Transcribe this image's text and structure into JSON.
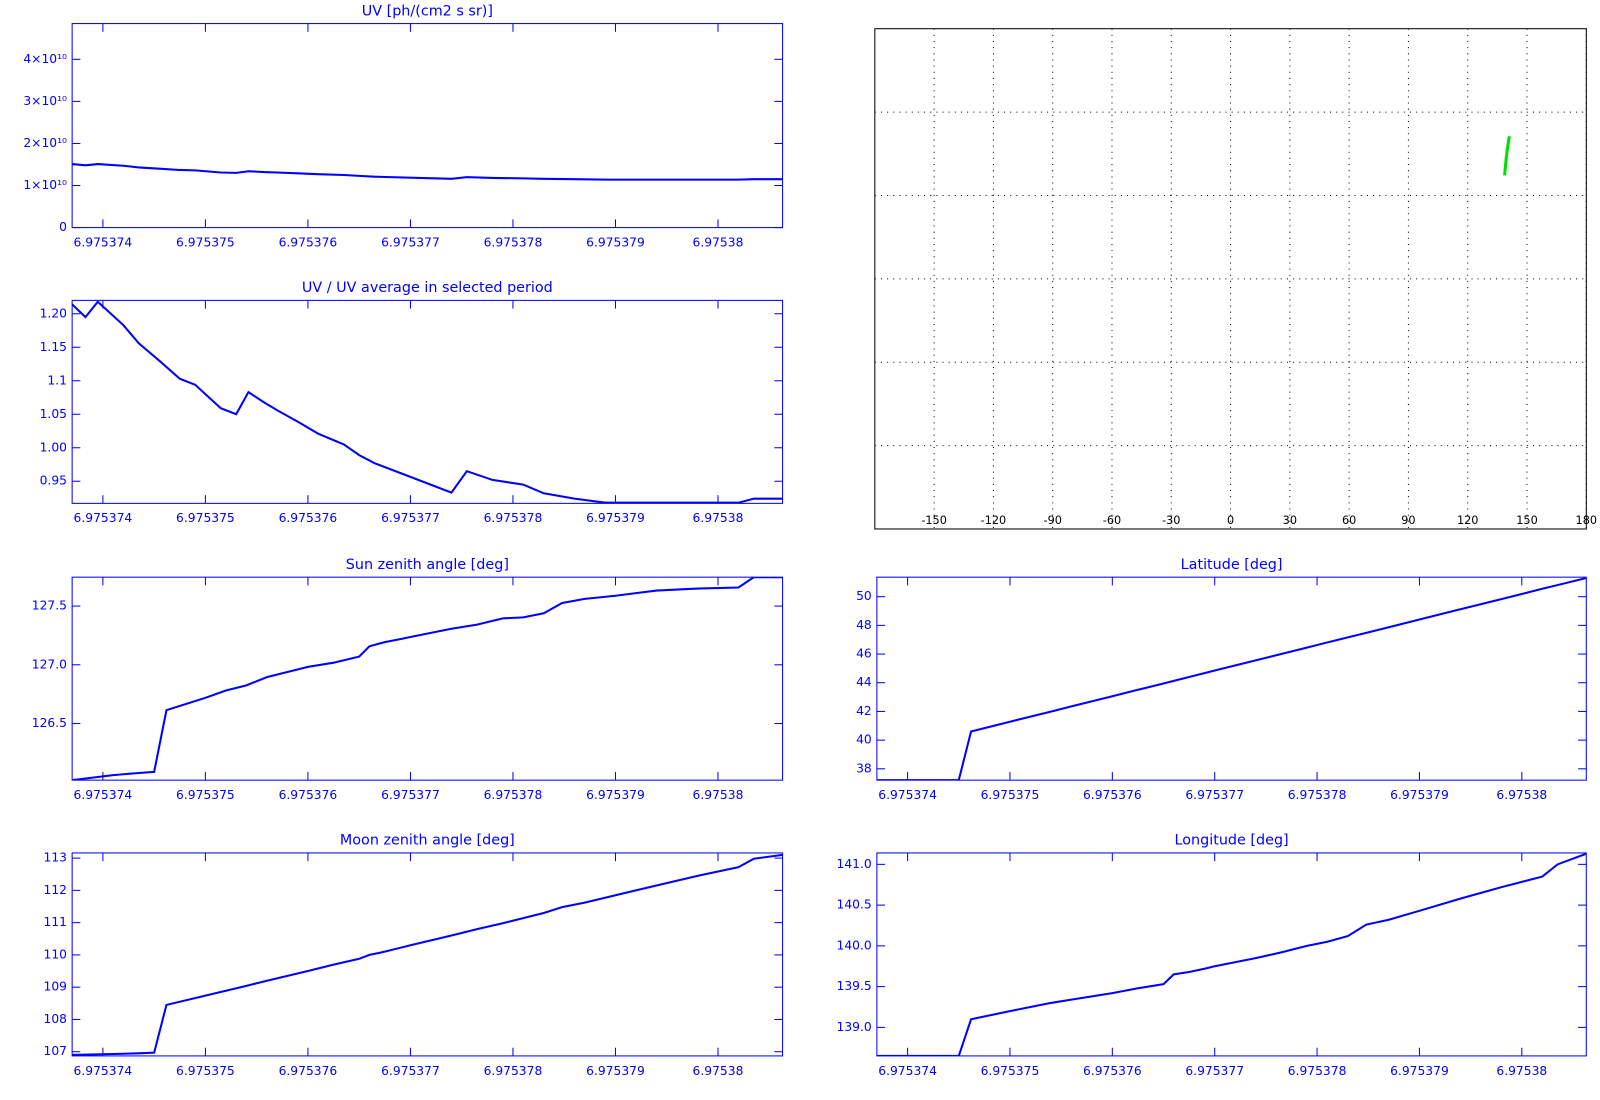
{
  "chart_data": [
    {
      "type": "line",
      "title": "UV [ph/(cm2 s sr)]",
      "color": "#0000ff",
      "x": [
        6.9753737,
        6.97537383,
        6.97537395,
        6.9753742,
        6.97537435,
        6.97537455,
        6.97537475,
        6.9753749,
        6.97537515,
        6.9753753,
        6.97537542,
        6.97537557,
        6.9753757,
        6.9753759,
        6.9753761,
        6.97537635,
        6.9753765,
        6.97537665,
        6.9753774,
        6.97537755,
        6.9753778,
        6.9753781,
        6.9753783,
        6.9753786,
        6.9753789,
        6.9753802,
        6.97538035,
        6.97538063
      ],
      "values": [
        15100000000.0,
        14800000000.0,
        15100000000.0,
        14700000000.0,
        14300000000.0,
        14000000000.0,
        13700000000.0,
        13600000000.0,
        13100000000.0,
        13000000000.0,
        13400000000.0,
        13200000000.0,
        13100000000.0,
        12900000000.0,
        12700000000.0,
        12500000000.0,
        12300000000.0,
        12100000000.0,
        11600000000.0,
        12000000000.0,
        11800000000.0,
        11700000000.0,
        11600000000.0,
        11500000000.0,
        11400000000.0,
        11400000000.0,
        11500000000.0,
        11500000000.0
      ],
      "xlim": [
        6.9753737,
        6.97538063
      ],
      "xticks": [
        6.975374,
        6.975375,
        6.975376,
        6.975377,
        6.975378,
        6.975379,
        6.97538
      ],
      "ylim": [
        0,
        48500000000.0
      ],
      "yticks": [
        0,
        {
          "value": 10000000000.0,
          "label": "1×10¹⁰"
        },
        {
          "value": 20000000000.0,
          "label": "2×10¹⁰"
        },
        {
          "value": 30000000000.0,
          "label": "3×10¹⁰"
        },
        {
          "value": 40000000000.0,
          "label": "4×10¹⁰"
        }
      ]
    },
    {
      "type": "line",
      "title": "UV / UV average in selected period",
      "color": "#0000ff",
      "x": [
        6.9753737,
        6.97537383,
        6.97537395,
        6.9753742,
        6.97537435,
        6.97537455,
        6.97537475,
        6.9753749,
        6.97537515,
        6.9753753,
        6.97537542,
        6.97537557,
        6.9753757,
        6.9753759,
        6.9753761,
        6.97537635,
        6.9753765,
        6.97537665,
        6.9753774,
        6.97537755,
        6.9753778,
        6.9753781,
        6.9753783,
        6.9753786,
        6.9753789,
        6.9753802,
        6.97538035,
        6.97538063
      ],
      "values": [
        1.214,
        1.195,
        1.218,
        1.183,
        1.156,
        1.13,
        1.103,
        1.094,
        1.059,
        1.05,
        1.083,
        1.068,
        1.056,
        1.039,
        1.021,
        1.005,
        0.989,
        0.977,
        0.933,
        0.965,
        0.952,
        0.945,
        0.932,
        0.924,
        0.918,
        0.918,
        0.924,
        0.924
      ],
      "xlim": [
        6.9753737,
        6.97538063
      ],
      "xticks": [
        6.975374,
        6.975375,
        6.975376,
        6.975377,
        6.975378,
        6.975379,
        6.97538
      ],
      "ylim": [
        0.917,
        1.22
      ],
      "yticks": [
        0.95,
        {
          "value": 1,
          "label": "1.00"
        },
        1.05,
        1.1,
        1.15,
        {
          "value": 1.2,
          "label": "1.20"
        }
      ]
    },
    {
      "type": "map",
      "color": "#00e000",
      "xlim": [
        -180,
        180
      ],
      "ylim": [
        -90,
        90
      ],
      "xticks": [
        -150,
        -120,
        -90,
        -60,
        -30,
        0,
        30,
        60,
        90,
        120,
        150,
        180
      ],
      "ygrid": [
        -60,
        -30,
        0,
        30,
        60
      ]
    },
    {
      "type": "line",
      "title": "Sun zenith angle [deg]",
      "color": "#0000ff",
      "x": [
        6.9753737,
        6.9753741,
        6.97537435,
        6.9753745,
        6.97537462,
        6.975375,
        6.9753752,
        6.9753754,
        6.9753756,
        6.975376,
        6.97537625,
        6.9753765,
        6.9753766,
        6.97537675,
        6.9753769,
        6.975377,
        6.9753774,
        6.97537765,
        6.9753779,
        6.9753781,
        6.9753783,
        6.97537848,
        6.9753787,
        6.975379,
        6.9753794,
        6.9753798,
        6.9753802,
        6.97538035,
        6.97538063
      ],
      "values": [
        126.018,
        126.061,
        126.079,
        126.088,
        126.614,
        126.719,
        126.781,
        126.825,
        126.895,
        126.982,
        127.018,
        127.07,
        127.158,
        127.193,
        127.219,
        127.237,
        127.307,
        127.342,
        127.395,
        127.404,
        127.439,
        127.526,
        127.561,
        127.588,
        127.632,
        127.649,
        127.658,
        127.746,
        127.746
      ],
      "xlim": [
        6.9753737,
        6.97538063
      ],
      "xticks": [
        6.975374,
        6.975375,
        6.975376,
        6.975377,
        6.975378,
        6.975379,
        6.97538
      ],
      "ylim": [
        126.018,
        127.746
      ],
      "yticks": [
        126.5,
        {
          "value": 127,
          "label": "127.0"
        },
        127.5
      ]
    },
    {
      "type": "line",
      "title": "Latitude [deg]",
      "color": "#0000ff",
      "x": [
        6.9753737,
        6.9753741,
        6.97537435,
        6.9753745,
        6.97537462,
        6.975375,
        6.9753752,
        6.9753754,
        6.9753756,
        6.975376,
        6.97537625,
        6.9753765,
        6.9753766,
        6.97537675,
        6.9753769,
        6.975377,
        6.9753774,
        6.97537765,
        6.9753779,
        6.9753781,
        6.9753783,
        6.97537848,
        6.9753787,
        6.975379,
        6.9753794,
        6.9753798,
        6.9753802,
        6.97538035,
        6.97538063
      ],
      "values": [
        37.21,
        37.21,
        37.21,
        37.22,
        40.6,
        41.28,
        41.64,
        41.99,
        42.35,
        43.06,
        43.51,
        43.95,
        44.13,
        44.4,
        44.67,
        44.85,
        45.56,
        46,
        46.45,
        46.81,
        47.16,
        47.48,
        47.87,
        48.41,
        49.12,
        49.83,
        50.55,
        50.81,
        51.3
      ],
      "xlim": [
        6.9753737,
        6.97538063
      ],
      "xticks": [
        6.975374,
        6.975375,
        6.975376,
        6.975377,
        6.975378,
        6.975379,
        6.97538
      ],
      "ylim": [
        37.21,
        51.36
      ],
      "yticks": [
        38,
        40,
        42,
        44,
        46,
        48,
        50
      ]
    },
    {
      "type": "line",
      "title": "Moon zenith angle [deg]",
      "color": "#0000ff",
      "x": [
        6.9753737,
        6.9753741,
        6.97537435,
        6.9753745,
        6.97537462,
        6.975375,
        6.9753752,
        6.9753754,
        6.9753756,
        6.975376,
        6.97537625,
        6.9753765,
        6.9753766,
        6.97537675,
        6.9753769,
        6.975377,
        6.9753774,
        6.97537765,
        6.9753779,
        6.9753781,
        6.9753783,
        6.97537848,
        6.9753787,
        6.975379,
        6.9753794,
        6.9753798,
        6.9753802,
        6.97538035,
        6.97538063
      ],
      "values": [
        106.9,
        106.93,
        106.95,
        106.97,
        108.45,
        108.74,
        108.89,
        109.04,
        109.2,
        109.5,
        109.7,
        109.88,
        110,
        110.1,
        110.22,
        110.3,
        110.6,
        110.8,
        110.98,
        111.14,
        111.3,
        111.48,
        111.62,
        111.85,
        112.15,
        112.45,
        112.72,
        112.98,
        113.1
      ],
      "xlim": [
        6.9753737,
        6.97538063
      ],
      "xticks": [
        6.975374,
        6.975375,
        6.975376,
        6.975377,
        6.975378,
        6.975379,
        6.97538
      ],
      "ylim": [
        106.87,
        113.16
      ],
      "yticks": [
        107,
        108,
        109,
        110,
        111,
        112,
        113
      ]
    },
    {
      "type": "line",
      "title": "Longitude [deg]",
      "color": "#0000ff",
      "x": [
        6.9753737,
        6.9753741,
        6.97537435,
        6.9753745,
        6.97537462,
        6.975375,
        6.9753752,
        6.9753754,
        6.9753756,
        6.975376,
        6.97537625,
        6.9753765,
        6.9753766,
        6.97537675,
        6.9753769,
        6.975377,
        6.9753774,
        6.97537765,
        6.9753779,
        6.9753781,
        6.9753783,
        6.97537848,
        6.9753787,
        6.975379,
        6.9753794,
        6.9753798,
        6.9753802,
        6.97538035,
        6.97538063
      ],
      "values": [
        138.65,
        138.65,
        138.65,
        138.65,
        139.1,
        139.2,
        139.25,
        139.3,
        139.34,
        139.42,
        139.48,
        139.53,
        139.65,
        139.68,
        139.72,
        139.75,
        139.85,
        139.92,
        140,
        140.05,
        140.12,
        140.26,
        140.32,
        140.43,
        140.58,
        140.72,
        140.85,
        141,
        141.13
      ],
      "xlim": [
        6.9753737,
        6.97538063
      ],
      "xticks": [
        6.975374,
        6.975375,
        6.975376,
        6.975377,
        6.975378,
        6.975379,
        6.97538
      ],
      "ylim": [
        138.65,
        141.14
      ],
      "yticks": [
        {
          "value": 139,
          "label": "139.0"
        },
        139.5,
        {
          "value": 140,
          "label": "140.0"
        },
        140.5,
        {
          "value": 141,
          "label": "141.0"
        }
      ]
    }
  ]
}
